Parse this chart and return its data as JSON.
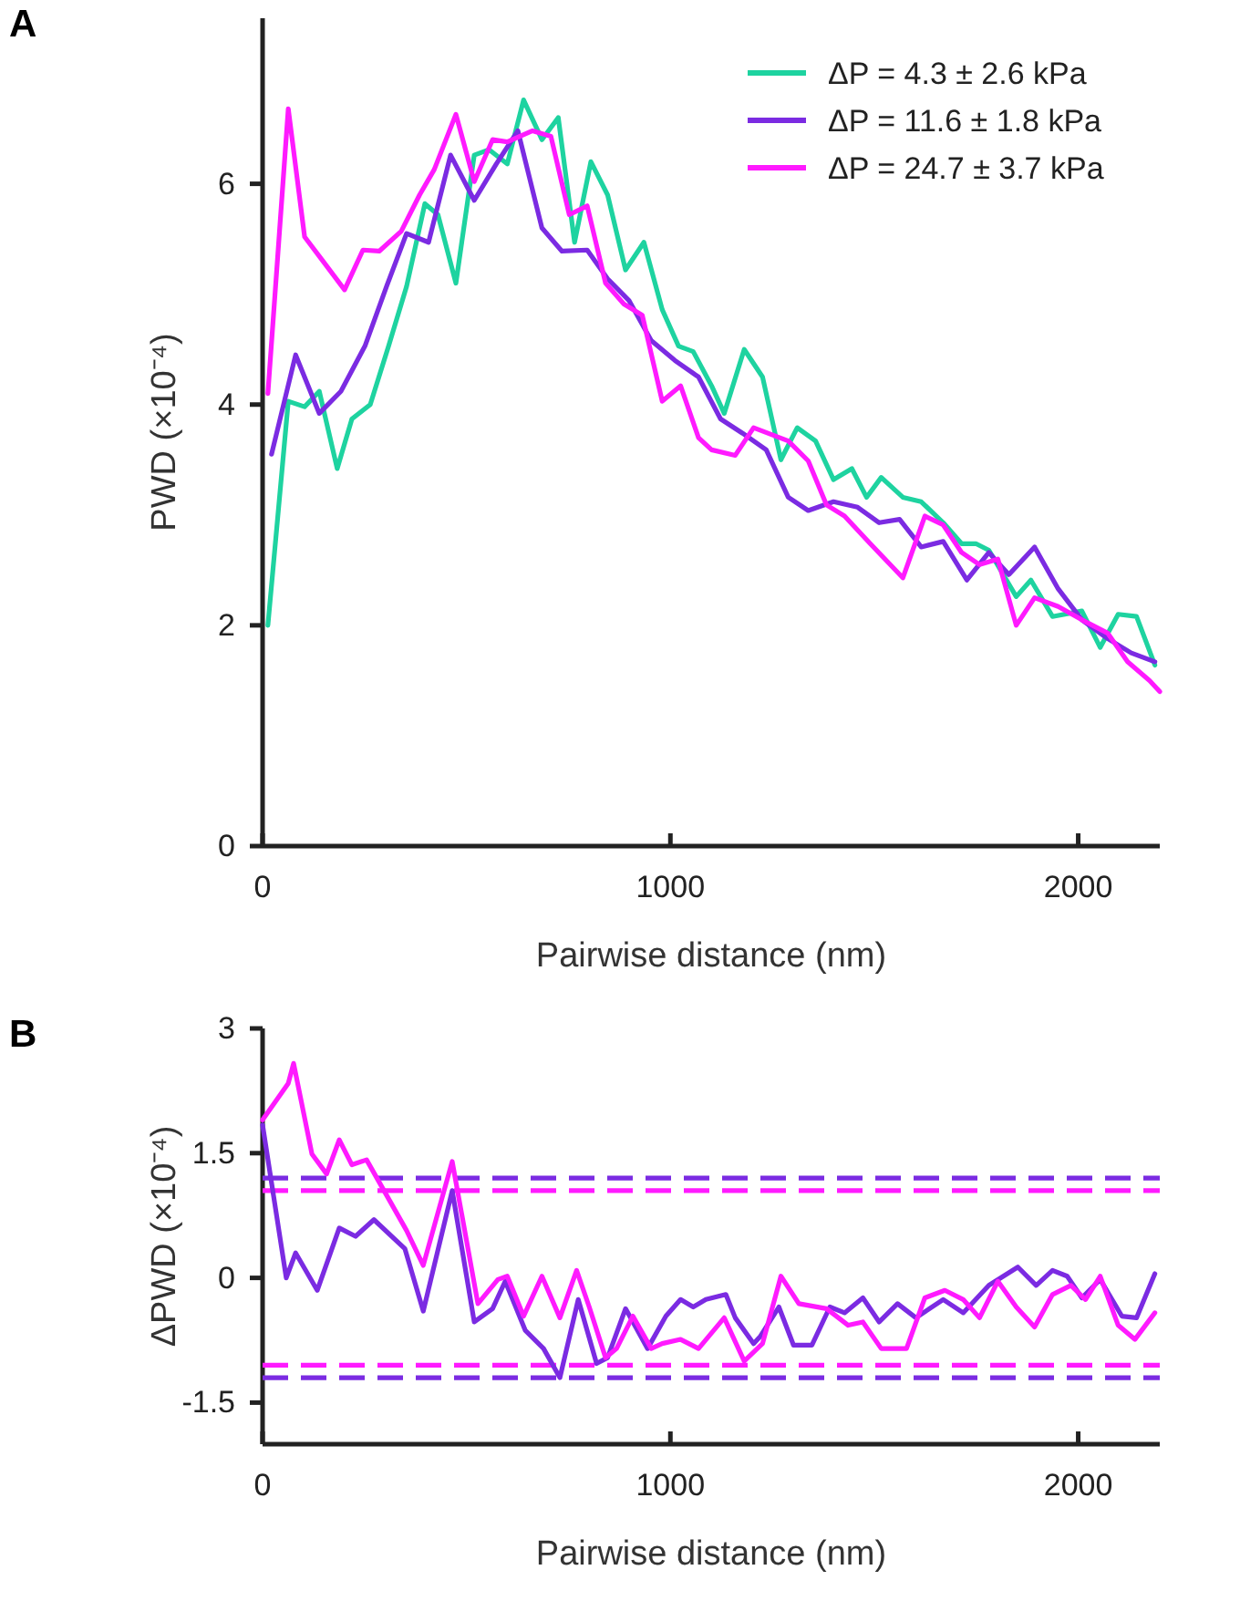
{
  "chart_data": [
    {
      "type": "line",
      "title": "A",
      "xlabel": "Pairwise distance (nm)",
      "ylabel": "PWD (×10⁻⁴)",
      "xlim": [
        0,
        2200
      ],
      "xticks": [
        0,
        1000,
        2000
      ],
      "ylim": [
        0,
        7.5
      ],
      "yticks": [
        0,
        2,
        4,
        6
      ],
      "legend": "top right",
      "series": [
        {
          "name": "ΔP = 4.3 ± 2.6 kPa",
          "color": "#1ed3a0",
          "x": [
            13,
            63,
            103,
            139,
            183,
            219,
            264,
            309,
            353,
            398,
            430,
            474,
            519,
            555,
            600,
            640,
            685,
            725,
            765,
            805,
            846,
            890,
            935,
            980,
            1020,
            1056,
            1101,
            1132,
            1181,
            1226,
            1271,
            1311,
            1356,
            1400,
            1445,
            1481,
            1517,
            1570,
            1615,
            1669,
            1714,
            1749,
            1781,
            1848,
            1884,
            1937,
            2009,
            2054,
            2098,
            2143,
            2188
          ],
          "values": [
            2.0,
            4.03,
            3.98,
            4.12,
            3.42,
            3.87,
            4.0,
            4.53,
            5.07,
            5.82,
            5.72,
            5.1,
            6.26,
            6.31,
            6.18,
            6.76,
            6.4,
            6.6,
            5.47,
            6.2,
            5.9,
            5.22,
            5.47,
            4.86,
            4.53,
            4.48,
            4.17,
            3.92,
            4.5,
            4.25,
            3.5,
            3.79,
            3.67,
            3.32,
            3.42,
            3.16,
            3.34,
            3.16,
            3.12,
            2.93,
            2.74,
            2.74,
            2.68,
            2.26,
            2.41,
            2.08,
            2.13,
            1.8,
            2.1,
            2.08,
            1.64
          ]
        },
        {
          "name": "ΔP = 11.6 ± 1.8 kPa",
          "color": "#7b2be2",
          "x": [
            22,
            81,
            139,
            192,
            251,
            304,
            353,
            407,
            461,
            519,
            573,
            626,
            685,
            734,
            796,
            846,
            899,
            953,
            1011,
            1069,
            1123,
            1177,
            1235,
            1289,
            1338,
            1400,
            1459,
            1512,
            1562,
            1615,
            1669,
            1727,
            1781,
            1830,
            1893,
            1951,
            2009,
            2072,
            2130,
            2188
          ],
          "values": [
            3.55,
            4.45,
            3.92,
            4.12,
            4.53,
            5.07,
            5.55,
            5.47,
            6.26,
            5.85,
            6.18,
            6.48,
            5.6,
            5.39,
            5.4,
            5.14,
            4.94,
            4.58,
            4.4,
            4.25,
            3.87,
            3.74,
            3.59,
            3.16,
            3.04,
            3.12,
            3.07,
            2.93,
            2.96,
            2.71,
            2.76,
            2.41,
            2.66,
            2.46,
            2.71,
            2.33,
            2.05,
            1.88,
            1.75,
            1.67
          ]
        },
        {
          "name": "ΔP = 24.7 ± 3.7 kPa",
          "color": "#ff1aff",
          "x": [
            13,
            63,
            103,
            148,
            201,
            246,
            286,
            340,
            385,
            421,
            474,
            519,
            564,
            600,
            662,
            707,
            752,
            796,
            841,
            886,
            931,
            980,
            1025,
            1069,
            1101,
            1159,
            1204,
            1289,
            1338,
            1383,
            1427,
            1490,
            1570,
            1624,
            1669,
            1714,
            1758,
            1803,
            1848,
            1893,
            1951,
            2009,
            2072,
            2121,
            2175,
            2200
          ],
          "values": [
            4.1,
            6.68,
            5.52,
            5.3,
            5.04,
            5.4,
            5.39,
            5.57,
            5.9,
            6.13,
            6.63,
            6.02,
            6.4,
            6.38,
            6.48,
            6.43,
            5.72,
            5.8,
            5.1,
            4.91,
            4.81,
            4.03,
            4.17,
            3.7,
            3.59,
            3.54,
            3.79,
            3.67,
            3.49,
            3.09,
            2.99,
            2.74,
            2.43,
            2.99,
            2.91,
            2.66,
            2.55,
            2.6,
            2.0,
            2.25,
            2.17,
            2.05,
            1.93,
            1.67,
            1.5,
            1.4
          ]
        }
      ]
    },
    {
      "type": "line",
      "title": "B",
      "xlabel": "Pairwise distance (nm)",
      "ylabel": "ΔPWD (×10⁻⁴)",
      "xlim": [
        0,
        2200
      ],
      "xticks": [
        0,
        1000,
        2000
      ],
      "ylim": [
        -2,
        3
      ],
      "yticks": [
        -1.5,
        0,
        1.5,
        3
      ],
      "series": [
        {
          "color": "#7b2be2",
          "x": [
            0,
            58,
            81,
            134,
            188,
            228,
            273,
            349,
            394,
            465,
            519,
            564,
            595,
            644,
            689,
            729,
            774,
            819,
            846,
            890,
            944,
            989,
            1025,
            1056,
            1087,
            1136,
            1159,
            1204,
            1221,
            1266,
            1302,
            1347,
            1391,
            1427,
            1472,
            1512,
            1557,
            1602,
            1669,
            1718,
            1781,
            1852,
            1897,
            1937,
            1973,
            2009,
            2054,
            2107,
            2143,
            2188
          ],
          "values": [
            1.84,
            0,
            0.3,
            -0.15,
            0.6,
            0.5,
            0.7,
            0.35,
            -0.4,
            1.05,
            -0.53,
            -0.37,
            -0.04,
            -0.63,
            -0.85,
            -1.2,
            -0.26,
            -1.03,
            -0.96,
            -0.37,
            -0.85,
            -0.46,
            -0.26,
            -0.35,
            -0.26,
            -0.2,
            -0.48,
            -0.79,
            -0.7,
            -0.35,
            -0.81,
            -0.81,
            -0.35,
            -0.42,
            -0.24,
            -0.53,
            -0.31,
            -0.48,
            -0.26,
            -0.42,
            -0.09,
            0.13,
            -0.09,
            0.09,
            0.02,
            -0.24,
            -0.02,
            -0.46,
            -0.48,
            0.05
          ]
        },
        {
          "color": "#ff1aff",
          "x": [
            0,
            63,
            76,
            121,
            157,
            188,
            219,
            255,
            353,
            394,
            465,
            528,
            577,
            600,
            640,
            685,
            729,
            770,
            801,
            841,
            868,
            908,
            953,
            980,
            1025,
            1069,
            1132,
            1181,
            1226,
            1271,
            1315,
            1383,
            1436,
            1472,
            1517,
            1579,
            1624,
            1673,
            1718,
            1758,
            1803,
            1848,
            1893,
            1937,
            1982,
            2018,
            2054,
            2098,
            2139,
            2188
          ],
          "values": [
            1.9,
            2.34,
            2.58,
            1.49,
            1.25,
            1.66,
            1.36,
            1.42,
            0.57,
            0.15,
            1.4,
            -0.31,
            -0.02,
            0.02,
            -0.46,
            0.02,
            -0.48,
            0.09,
            -0.35,
            -0.96,
            -0.85,
            -0.46,
            -0.85,
            -0.79,
            -0.74,
            -0.85,
            -0.48,
            -1.0,
            -0.79,
            0.02,
            -0.31,
            -0.37,
            -0.57,
            -0.53,
            -0.85,
            -0.85,
            -0.24,
            -0.15,
            -0.26,
            -0.48,
            -0.04,
            -0.35,
            -0.59,
            -0.2,
            -0.09,
            -0.26,
            0.02,
            -0.57,
            -0.74,
            -0.42
          ]
        }
      ],
      "ref_lines": [
        {
          "axis": "y",
          "value": 1.2,
          "color": "#7b2be2",
          "line_style": "dashed"
        },
        {
          "axis": "y",
          "value": 1.05,
          "color": "#ff1aff",
          "line_style": "dashed"
        },
        {
          "axis": "y",
          "value": -1.05,
          "color": "#ff1aff",
          "line_style": "dashed"
        },
        {
          "axis": "y",
          "value": -1.2,
          "color": "#7b2be2",
          "line_style": "dashed"
        }
      ]
    }
  ]
}
